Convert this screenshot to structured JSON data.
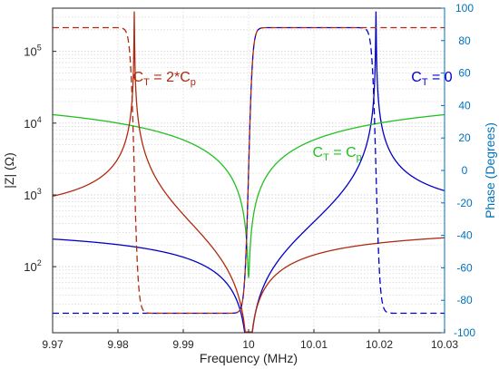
{
  "chart_data": {
    "type": "line",
    "xlabel": "Frequency (MHz)",
    "ylabel_left": "|Z| (Ω)",
    "ylabel_right": "Phase (Degrees)",
    "xlim": [
      9.97,
      10.03
    ],
    "ylim_left": [
      12,
      400000
    ],
    "yscale_left": "log",
    "ylim_right": [
      -100,
      100
    ],
    "grid": true,
    "x_ticks": [
      "9.97",
      "9.98",
      "9.99",
      "10",
      "10.01",
      "10.02",
      "10.03"
    ],
    "y_left_ticks": [
      {
        "base": "10",
        "exp": "2",
        "value": 100
      },
      {
        "base": "10",
        "exp": "3",
        "value": 1000
      },
      {
        "base": "10",
        "exp": "4",
        "value": 10000
      },
      {
        "base": "10",
        "exp": "5",
        "value": 100000
      }
    ],
    "y_right_ticks": [
      "100",
      "80",
      "60",
      "40",
      "20",
      "0",
      "-20",
      "-40",
      "-60",
      "-80",
      "-100"
    ],
    "colors": {
      "ct_0": "#0000C8",
      "ct_cp": "#20C020",
      "ct_2cp": "#B02A10",
      "right_axis": "#0072BD"
    },
    "resonator": {
      "series_frequency_mhz": 10.0,
      "parallel_frequencies_mhz": {
        "ct_0": 10.0195,
        "ct_cp": 10.0,
        "ct_2cp": 9.9825
      },
      "series_frequency_shifted_mhz": 10.0
    },
    "series": [
      {
        "key": "ct_0",
        "type": "magnitude",
        "color": "#0000C8",
        "dashed": false
      },
      {
        "key": "ct_cp",
        "type": "magnitude",
        "color": "#20C020",
        "dashed": false
      },
      {
        "key": "ct_2cp",
        "type": "magnitude",
        "color": "#B02A10",
        "dashed": false
      },
      {
        "key": "ct_0",
        "type": "phase",
        "color": "#0000C8",
        "dashed": true
      },
      {
        "key": "ct_2cp",
        "type": "phase",
        "color": "#B02A10",
        "dashed": true
      }
    ],
    "annotations": [
      {
        "key": "ct_2cp",
        "main": "C",
        "sub1": "T",
        "mid": " = 2*C",
        "sub2": "p",
        "color": "#B02A10"
      },
      {
        "key": "ct_cp",
        "main": "C",
        "sub1": "T",
        "mid": " = C",
        "sub2": "p",
        "color": "#20C020"
      },
      {
        "key": "ct_0",
        "main": "C",
        "sub1": "T",
        "mid": " = 0",
        "sub2": "",
        "color": "#0000C8"
      }
    ]
  }
}
